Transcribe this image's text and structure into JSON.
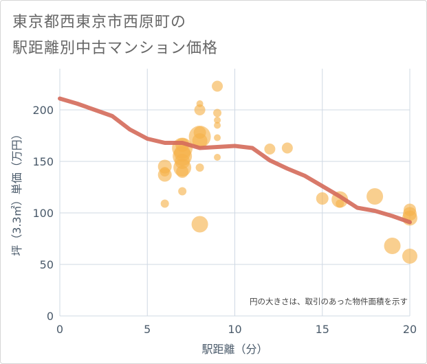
{
  "header": {
    "title_line1": "東京都西東京市西原町の",
    "title_line2": "駅距離別中古マンション価格"
  },
  "colors": {
    "bubble": "#f5b24a",
    "trend": "#d46a5a",
    "grid": "#cfd8e3",
    "axis_text": "#4a5a6a"
  },
  "chart_data": {
    "type": "scatter",
    "title": "東京都西東京市西原町の駅距離別中古マンション価格",
    "xlabel": "駅距離（分）",
    "ylabel": "坪（3.3㎡）単価（万円）",
    "xlim": [
      0,
      20
    ],
    "ylim": [
      0,
      240
    ],
    "xticks": [
      0,
      5,
      10,
      15,
      20
    ],
    "yticks": [
      0,
      50,
      100,
      150,
      200
    ],
    "grid": true,
    "note": "円の大きさは、取引のあった物件面積を示す",
    "points": [
      {
        "x": 6,
        "y": 109,
        "s": 6
      },
      {
        "x": 6,
        "y": 137,
        "s": 10
      },
      {
        "x": 6,
        "y": 140,
        "s": 7
      },
      {
        "x": 6,
        "y": 145,
        "s": 10
      },
      {
        "x": 7,
        "y": 121,
        "s": 6
      },
      {
        "x": 7,
        "y": 140,
        "s": 9
      },
      {
        "x": 7,
        "y": 144,
        "s": 13
      },
      {
        "x": 7,
        "y": 150,
        "s": 11
      },
      {
        "x": 7,
        "y": 155,
        "s": 14
      },
      {
        "x": 7,
        "y": 158,
        "s": 12
      },
      {
        "x": 7,
        "y": 163,
        "s": 15
      },
      {
        "x": 7,
        "y": 166,
        "s": 10
      },
      {
        "x": 8,
        "y": 89,
        "s": 12
      },
      {
        "x": 8,
        "y": 144,
        "s": 6
      },
      {
        "x": 8,
        "y": 170,
        "s": 11
      },
      {
        "x": 8,
        "y": 174,
        "s": 16
      },
      {
        "x": 8,
        "y": 178,
        "s": 9
      },
      {
        "x": 8,
        "y": 200,
        "s": 8
      },
      {
        "x": 8,
        "y": 206,
        "s": 5
      },
      {
        "x": 9,
        "y": 154,
        "s": 5
      },
      {
        "x": 9,
        "y": 173,
        "s": 5
      },
      {
        "x": 9,
        "y": 185,
        "s": 5
      },
      {
        "x": 9,
        "y": 190,
        "s": 5
      },
      {
        "x": 9,
        "y": 197,
        "s": 6
      },
      {
        "x": 9,
        "y": 223,
        "s": 8
      },
      {
        "x": 12,
        "y": 162,
        "s": 8
      },
      {
        "x": 13,
        "y": 163,
        "s": 8
      },
      {
        "x": 15,
        "y": 114,
        "s": 9
      },
      {
        "x": 16,
        "y": 109,
        "s": 6
      },
      {
        "x": 16,
        "y": 113,
        "s": 12
      },
      {
        "x": 18,
        "y": 116,
        "s": 12
      },
      {
        "x": 19,
        "y": 68,
        "s": 12
      },
      {
        "x": 20,
        "y": 58,
        "s": 11
      },
      {
        "x": 20,
        "y": 95,
        "s": 11
      },
      {
        "x": 20,
        "y": 99,
        "s": 10
      },
      {
        "x": 20,
        "y": 103,
        "s": 9
      }
    ],
    "trend": {
      "name": "trend",
      "x": [
        0,
        1,
        2,
        3,
        4,
        5,
        6,
        7,
        8,
        9,
        10,
        11,
        12,
        13,
        14,
        15,
        16,
        17,
        18,
        19,
        20
      ],
      "y": [
        211,
        206,
        200,
        194,
        181,
        172,
        168,
        168,
        163,
        164,
        165,
        163,
        151,
        143,
        136,
        126,
        116,
        105,
        102,
        97,
        91
      ]
    }
  }
}
